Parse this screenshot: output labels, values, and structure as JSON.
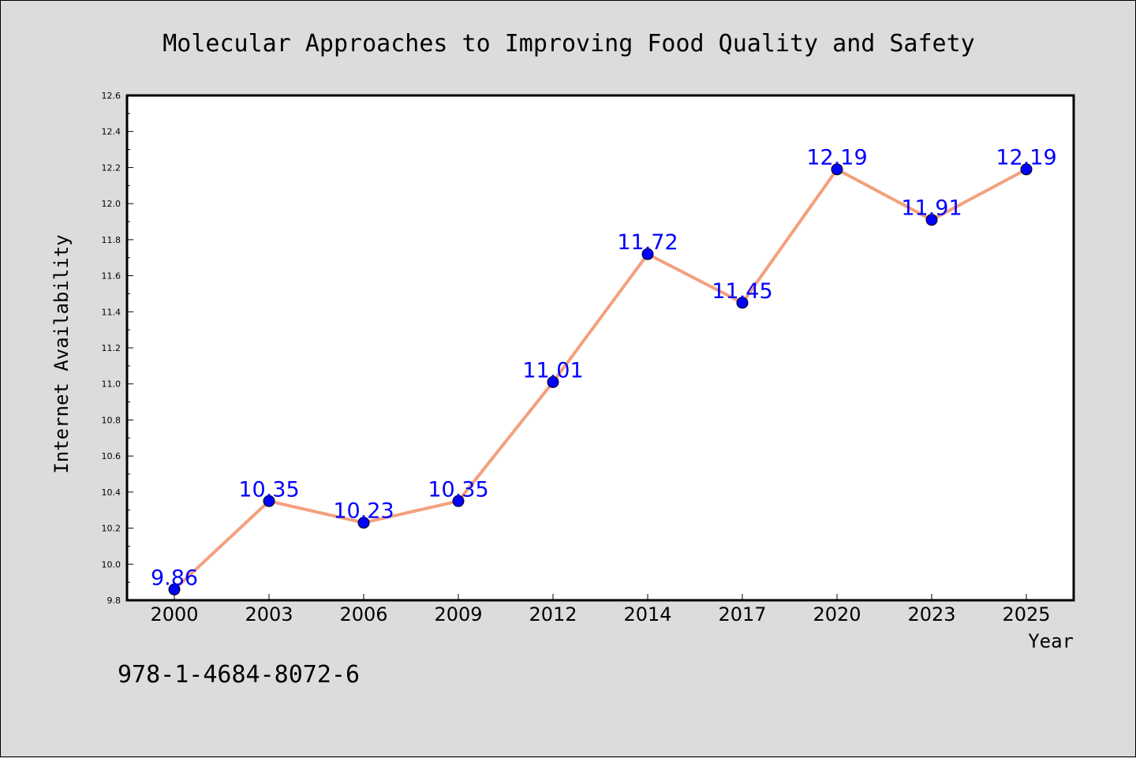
{
  "chart_data": {
    "type": "line",
    "title": "Molecular Approaches to Improving Food Quality and Safety",
    "xlabel": "Year",
    "ylabel": "Internet Availability",
    "categories": [
      "2000",
      "2003",
      "2006",
      "2009",
      "2012",
      "2014",
      "2017",
      "2020",
      "2023",
      "2025"
    ],
    "series": [
      {
        "values": [
          9.86,
          10.35,
          10.23,
          10.35,
          11.01,
          11.72,
          11.45,
          12.19,
          11.91,
          12.19
        ],
        "labels": [
          "9.86",
          "10.35",
          "10.23",
          "10.35",
          "11.01",
          "11.72",
          "11.45",
          "12.19",
          "11.91",
          "12.19"
        ]
      }
    ],
    "ylim": [
      9.8,
      12.6
    ],
    "yticks": [
      "9.8",
      "10.0",
      "10.2",
      "10.4",
      "10.6",
      "10.8",
      "11.0",
      "11.2",
      "11.4",
      "11.6",
      "11.8",
      "12.0",
      "12.2",
      "12.4",
      "12.6"
    ],
    "grid": false,
    "legend": "none",
    "colors": {
      "line": "#f4a07e",
      "marker": "#0000ff",
      "data_label": "#0000ff",
      "plot_background": "#ffffff",
      "figure_background": "#dcdcdc"
    }
  },
  "footer": {
    "isbn": "978-1-4684-8072-6"
  }
}
